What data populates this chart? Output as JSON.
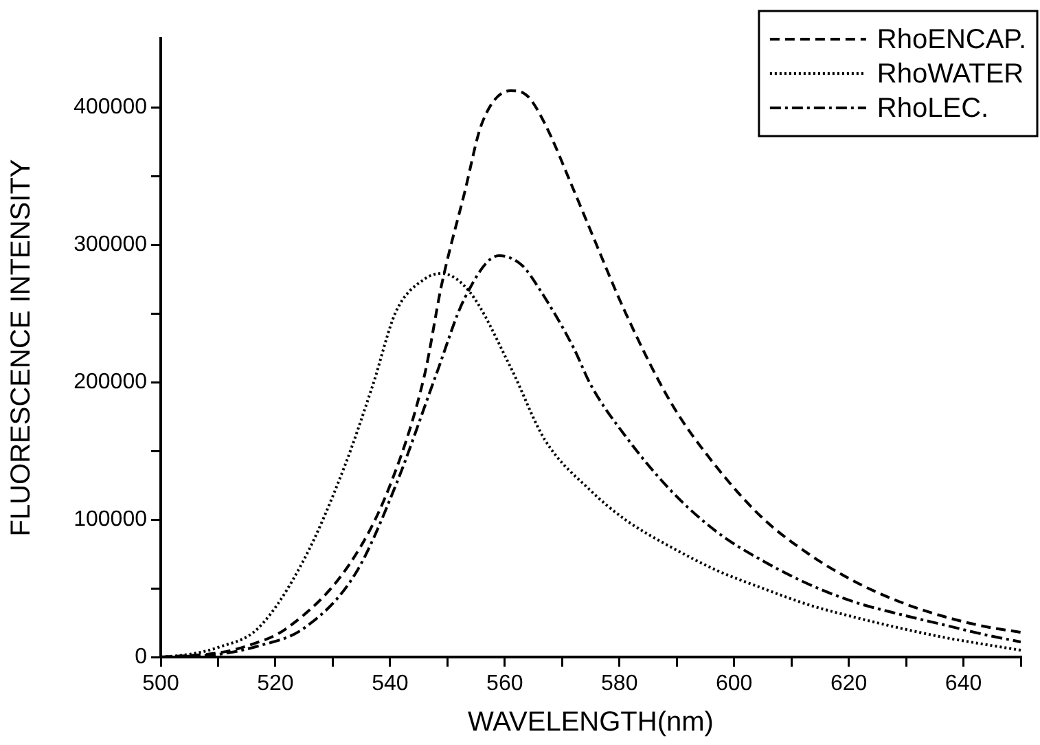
{
  "chart_data": {
    "type": "line",
    "xlabel": "WAVELENGTH(nm)",
    "ylabel": "FLUORESCENCE INTENSITY",
    "xlim": [
      500,
      650
    ],
    "ylim": [
      0,
      450000
    ],
    "xticks": [
      500,
      {
        "value": 510,
        "label": null
      },
      520,
      {
        "value": 530,
        "label": null
      },
      540,
      {
        "value": 550,
        "label": null
      },
      560,
      {
        "value": 570,
        "label": null
      },
      580,
      {
        "value": 590,
        "label": null
      },
      600,
      {
        "value": 610,
        "label": null
      },
      620,
      {
        "value": 630,
        "label": null
      },
      640,
      {
        "value": 650,
        "label": null
      }
    ],
    "yticks": [
      0,
      {
        "value": 50000,
        "label": null
      },
      100000,
      {
        "value": 150000,
        "label": null
      },
      200000,
      {
        "value": 250000,
        "label": null
      },
      300000,
      {
        "value": 350000,
        "label": null
      },
      400000
    ],
    "legend": "top right",
    "marker": "none",
    "grid": false,
    "series": [
      {
        "name": "RhoENCAP.",
        "color": "#000000",
        "line_style": "dashed",
        "x": [
          500,
          510,
          515,
          522,
          533,
          540,
          546,
          549,
          553,
          556,
          561,
          564,
          567,
          572,
          575,
          581,
          589,
          597,
          605,
          613,
          621,
          629,
          637,
          644,
          650
        ],
        "values": [
          0,
          3000,
          8000,
          21000,
          68000,
          125000,
          205000,
          271000,
          338000,
          388000,
          412000,
          408000,
          388000,
          340000,
          310000,
          251000,
          185000,
          138000,
          101000,
          75000,
          55000,
          40000,
          29000,
          22000,
          18000
        ]
      },
      {
        "name": "RhoWATER",
        "color": "#000000",
        "line_style": "dotted",
        "x": [
          500,
          505,
          510,
          517,
          525,
          532,
          537,
          541,
          546,
          549,
          554,
          561,
          567,
          575,
          581,
          589,
          597,
          605,
          613,
          621,
          629,
          637,
          644,
          650
        ],
        "values": [
          0,
          2000,
          7000,
          21000,
          71000,
          138000,
          198000,
          251000,
          275000,
          279000,
          265000,
          211000,
          158000,
          121000,
          100000,
          80000,
          63000,
          50000,
          38000,
          29000,
          21000,
          14000,
          9000,
          5000
        ]
      },
      {
        "name": "RhoLEC.",
        "color": "#000000",
        "line_style": "dashdot",
        "x": [
          500,
          510,
          517,
          525,
          534,
          541,
          548,
          553,
          559,
          563,
          566,
          572,
          575,
          581,
          589,
          597,
          605,
          613,
          621,
          629,
          637,
          644,
          650
        ],
        "values": [
          0,
          2000,
          8000,
          21000,
          61000,
          125000,
          205000,
          261000,
          292000,
          285000,
          268000,
          225000,
          198000,
          161000,
          121000,
          91000,
          70000,
          53000,
          40000,
          31000,
          23000,
          16000,
          11000
        ]
      }
    ]
  }
}
